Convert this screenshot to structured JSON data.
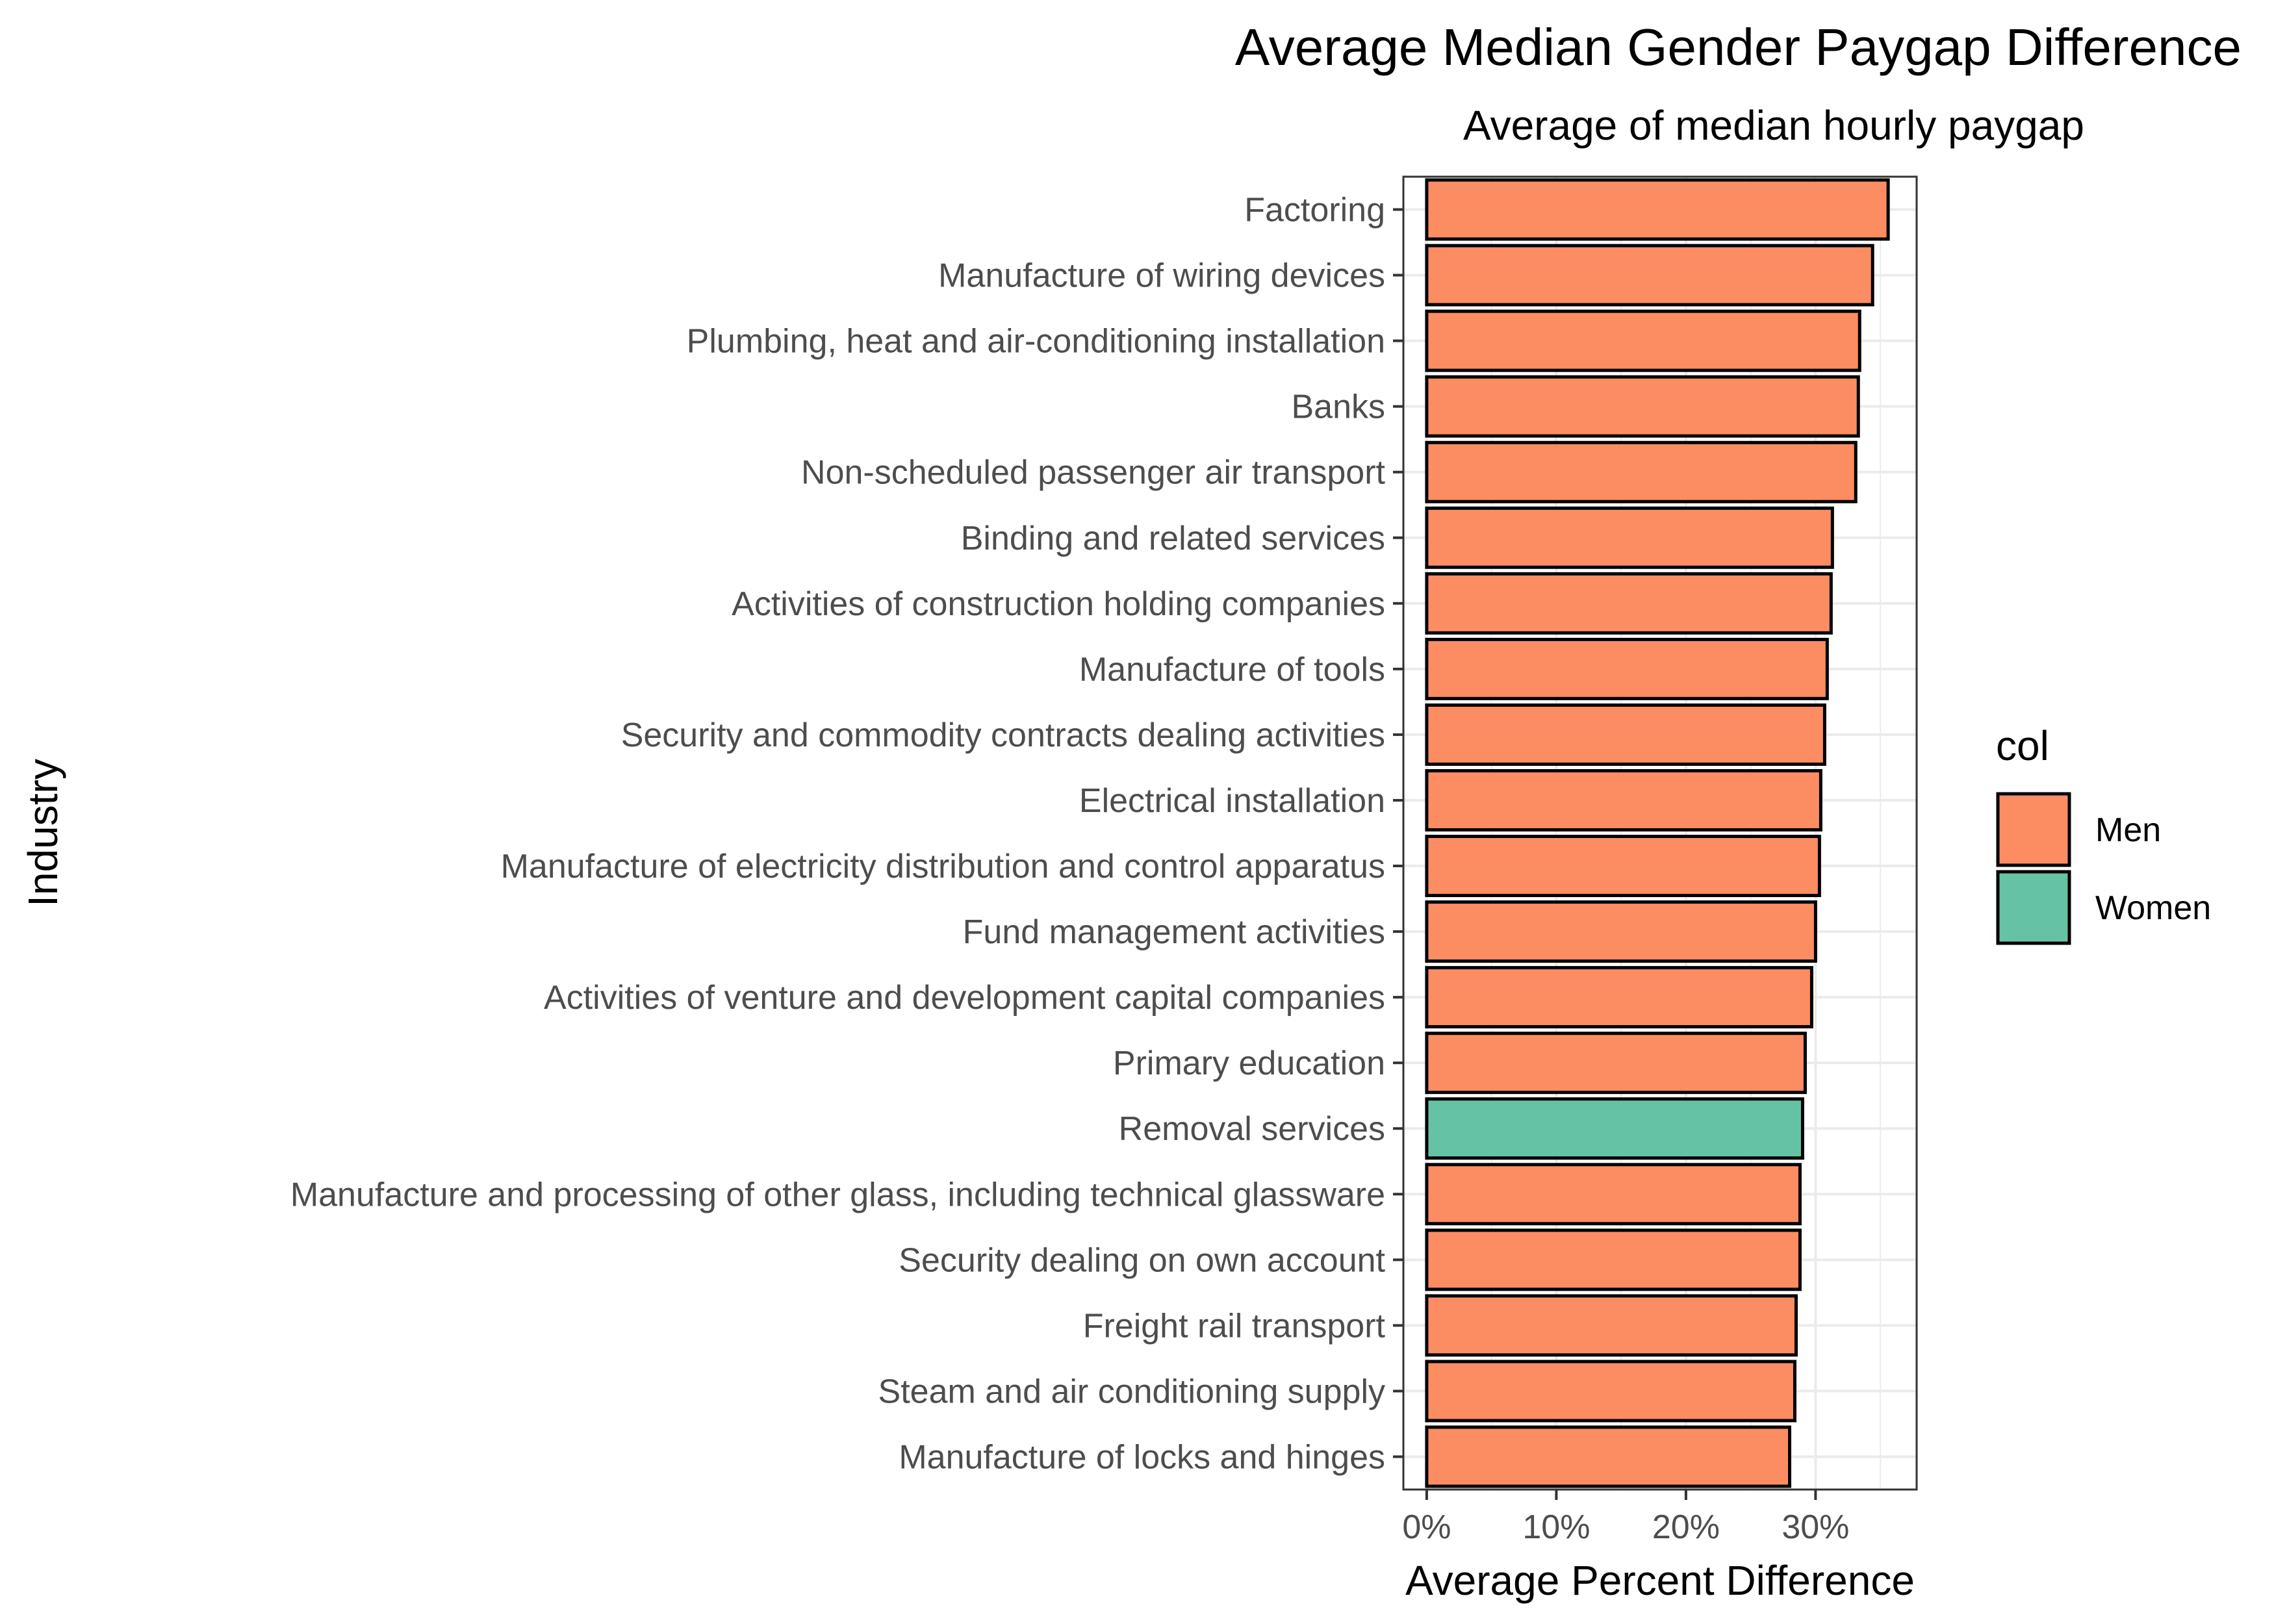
{
  "chart_data": {
    "type": "bar",
    "orientation": "horizontal",
    "title": "Average Median Gender Paygap Difference",
    "subtitle": "Average of median hourly paygap",
    "xlabel": "Average Percent Difference",
    "ylabel": "Industry",
    "xlim": [
      -0.018,
      0.378
    ],
    "x_ticks": [
      0,
      0.1,
      0.2,
      0.3
    ],
    "x_tick_labels": [
      "0%",
      "10%",
      "20%",
      "30%"
    ],
    "grid": true,
    "legend": {
      "title": "col",
      "position": "right",
      "entries": [
        {
          "label": "Men",
          "color": "#fc8d62"
        },
        {
          "label": "Women",
          "color": "#66c2a5"
        }
      ]
    },
    "categories": [
      "Factoring",
      "Manufacture of wiring devices",
      "Plumbing, heat and air-conditioning installation",
      "Banks",
      "Non-scheduled passenger air transport",
      "Binding and related services",
      "Activities of construction holding companies",
      "Manufacture of tools",
      "Security and commodity contracts dealing activities",
      "Electrical installation",
      "Manufacture of electricity distribution and control apparatus",
      "Fund management activities",
      "Activities of venture and development capital companies",
      "Primary education",
      "Removal services",
      "Manufacture and processing of other glass, including technical glassware",
      "Security dealing on own account",
      "Freight rail transport",
      "Steam and air conditioning supply",
      "Manufacture of locks and hinges"
    ],
    "values": [
      0.356,
      0.344,
      0.334,
      0.333,
      0.331,
      0.313,
      0.312,
      0.309,
      0.307,
      0.304,
      0.303,
      0.3,
      0.297,
      0.292,
      0.29,
      0.288,
      0.288,
      0.285,
      0.284,
      0.28
    ],
    "groups": [
      "Men",
      "Men",
      "Men",
      "Men",
      "Men",
      "Men",
      "Men",
      "Men",
      "Men",
      "Men",
      "Men",
      "Men",
      "Men",
      "Men",
      "Women",
      "Men",
      "Men",
      "Men",
      "Men",
      "Men"
    ]
  },
  "colors": {
    "Men": "#fc8d62",
    "Women": "#66c2a5",
    "bar_border": "#000000",
    "grid": "#ebebeb",
    "panel_border": "#333333"
  }
}
